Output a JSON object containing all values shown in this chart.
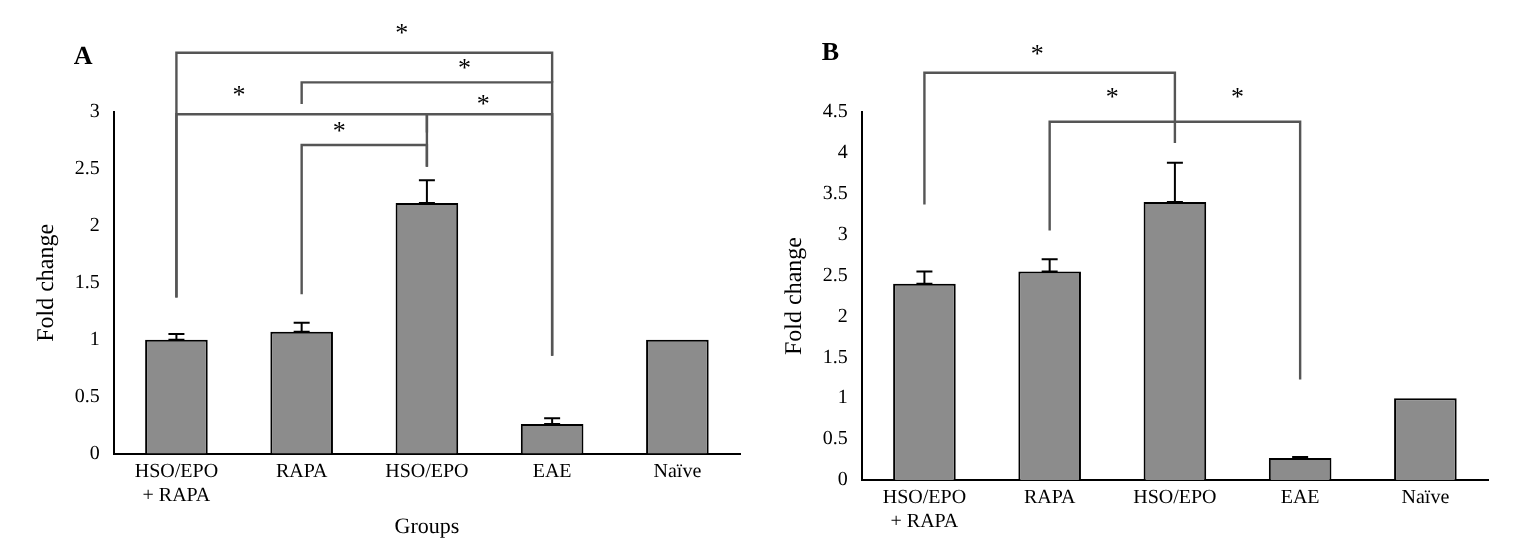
{
  "chart_data": [
    {
      "type": "bar",
      "title": "A",
      "xlabel": "Groups",
      "ylabel": "Fold change",
      "categories": [
        "HSO/EPO + RAPA",
        "RAPA",
        "HSO/EPO",
        "EAE",
        "Naïve"
      ],
      "values": [
        1.0,
        1.07,
        2.2,
        0.26,
        1.0
      ],
      "errors": [
        [
          1.0,
          1.05
        ],
        [
          1.07,
          1.15
        ],
        [
          2.2,
          2.4
        ],
        [
          0.26,
          0.31
        ],
        null
      ],
      "color": "#8c8c8c",
      "ylim": [
        0,
        3
      ],
      "yticks": [
        0,
        0.5,
        1,
        1.5,
        2,
        2.5,
        3
      ],
      "grid": false,
      "legend": false,
      "annotations": [
        "*",
        "*",
        "*",
        "*",
        "*"
      ]
    },
    {
      "type": "bar",
      "title": "B",
      "ylabel": "Fold change",
      "categories": [
        "HSO/EPO + RAPA",
        "RAPA",
        "HSO/EPO",
        "EAE",
        "Naïve"
      ],
      "values": [
        2.4,
        2.55,
        3.4,
        0.27,
        1.0
      ],
      "errors": [
        [
          2.4,
          2.55
        ],
        [
          2.55,
          2.7
        ],
        [
          3.4,
          3.88
        ],
        [
          0.27,
          0.28
        ],
        null
      ],
      "color": "#8c8c8c",
      "ylim": [
        0,
        4.5
      ],
      "yticks": [
        0,
        0.5,
        1,
        1.5,
        2,
        2.5,
        3,
        3.5,
        4,
        4.5
      ],
      "grid": false,
      "legend": false,
      "annotations": [
        "*",
        "*",
        "*"
      ]
    }
  ]
}
